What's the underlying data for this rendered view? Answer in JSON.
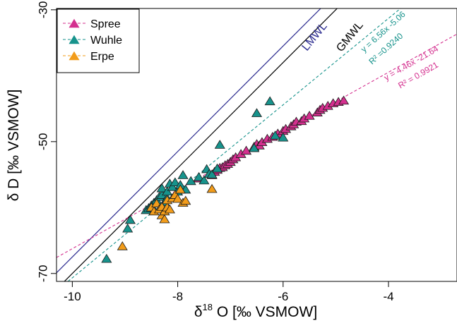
{
  "chart_data": {
    "type": "scatter",
    "xlabel_symbol": "δ",
    "xlabel_sup": "18",
    "xlabel_rest": " O [‰ VSMOW]",
    "ylabel": "δ D [‰ VSMOW]",
    "xlim": [
      -10.3,
      -2.7
    ],
    "ylim": [
      -71.2,
      -29.8
    ],
    "xticks": [
      -10,
      -8,
      -6,
      -4
    ],
    "xtick_labels": [
      "-10",
      "-8",
      "-6",
      "-4"
    ],
    "yticks": [
      -30,
      -50,
      -70
    ],
    "ytick_labels": [
      "-30",
      "-50",
      "-70"
    ],
    "grid": false,
    "legend": {
      "position": "top-left",
      "items": [
        {
          "label": "Spree",
          "color": "#d4308f"
        },
        {
          "label": "Wuhle",
          "color": "#17938c"
        },
        {
          "label": "Erpe",
          "color": "#f29c1a"
        }
      ]
    },
    "series": [
      {
        "name": "Spree",
        "color": "#d4308f",
        "marker": "triangle",
        "x": [
          -7.6,
          -7.35,
          -7.3,
          -7.25,
          -7.2,
          -7.15,
          -7.1,
          -7.05,
          -7.0,
          -6.95,
          -6.9,
          -6.8,
          -6.7,
          -6.55,
          -6.5,
          -6.45,
          -6.4,
          -6.3,
          -6.2,
          -6.1,
          -6.0,
          -5.95,
          -5.85,
          -5.8,
          -5.75,
          -5.65,
          -5.6,
          -5.5,
          -5.35,
          -5.3,
          -5.25,
          -5.15,
          -5.05,
          -4.95,
          -4.85
        ],
        "y": [
          -55.6,
          -55.1,
          -54.6,
          -54.3,
          -54.0,
          -53.9,
          -53.6,
          -53.4,
          -53.1,
          -52.7,
          -52.4,
          -51.9,
          -51.4,
          -50.8,
          -50.4,
          -50.6,
          -50.1,
          -49.6,
          -49.3,
          -48.8,
          -48.4,
          -48.1,
          -47.7,
          -47.4,
          -47.0,
          -46.9,
          -46.5,
          -46.1,
          -45.6,
          -45.2,
          -44.9,
          -44.6,
          -44.2,
          -44.0,
          -43.8
        ]
      },
      {
        "name": "Wuhle",
        "color": "#17938c",
        "marker": "triangle",
        "x": [
          -9.35,
          -8.95,
          -8.9,
          -8.6,
          -8.55,
          -8.5,
          -8.45,
          -8.4,
          -8.35,
          -8.3,
          -8.3,
          -8.25,
          -8.2,
          -8.2,
          -8.15,
          -8.1,
          -8.05,
          -8.0,
          -7.95,
          -7.9,
          -7.85,
          -7.75,
          -7.6,
          -7.5,
          -7.45,
          -7.4,
          -7.35,
          -7.25,
          -7.2,
          -6.55,
          -6.5,
          -6.15,
          -6.0,
          -6.25
        ],
        "y": [
          -67.8,
          -63.2,
          -61.9,
          -60.4,
          -60.1,
          -59.7,
          -59.3,
          -58.9,
          -58.4,
          -58.1,
          -57.1,
          -59.2,
          -58.6,
          -57.6,
          -56.4,
          -56.9,
          -56.2,
          -57.6,
          -56.6,
          -55.1,
          -57.3,
          -56.0,
          -55.4,
          -55.9,
          -54.2,
          -54.9,
          -55.0,
          -54.1,
          -50.5,
          -51.0,
          -45.7,
          -49.1,
          -49.4,
          -43.9
        ]
      },
      {
        "name": "Erpe",
        "color": "#f29c1a",
        "marker": "triangle",
        "x": [
          -9.05,
          -8.5,
          -8.45,
          -8.4,
          -8.35,
          -8.3,
          -8.3,
          -8.25,
          -8.25,
          -8.2,
          -8.2,
          -8.15,
          -8.1,
          -8.05,
          -8.0,
          -7.95,
          -7.9,
          -7.85,
          -7.35
        ],
        "y": [
          -65.9,
          -60.0,
          -60.6,
          -59.4,
          -60.3,
          -61.2,
          -59.9,
          -60.6,
          -61.8,
          -60.0,
          -58.9,
          -60.3,
          -58.6,
          -58.1,
          -58.7,
          -57.3,
          -59.3,
          -59.0,
          -57.2
        ]
      }
    ],
    "lines": [
      {
        "label": "LMWL",
        "color": "#2a2a8f",
        "style": "solid",
        "slope": 8.0,
        "intercept": 12.5,
        "label_value": "LMWL"
      },
      {
        "label": "GMWL",
        "color": "#000000",
        "style": "solid",
        "slope": 8.0,
        "intercept": 10.0,
        "label_value": "GMWL"
      },
      {
        "label": "Wuhle fit",
        "color": "#17938c",
        "style": "dashed",
        "slope": 6.56,
        "intercept": -5.06,
        "equation": "y = 6.56x -5.06",
        "r2": "R² =0.9240"
      },
      {
        "label": "Spree fit",
        "color": "#d4308f",
        "style": "dashed",
        "slope": 4.46,
        "intercept": -21.64,
        "equation": "y = 4.46x -21.64",
        "r2": "R² = 0.9921"
      }
    ]
  }
}
